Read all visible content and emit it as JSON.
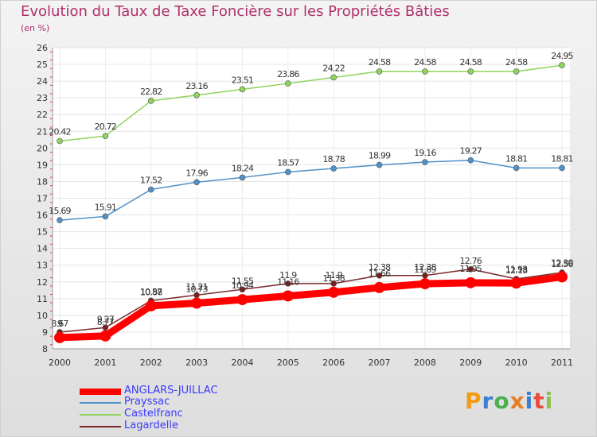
{
  "page": {
    "title": "Evolution du Taux de Taxe Foncière sur les Propriétés Bâties",
    "unit": "(en %)"
  },
  "chart_data": {
    "type": "line",
    "title": "Evolution du Taux de Taxe Foncière sur les Propriétés Bâties",
    "ylabel": "(en %)",
    "xlabel": "",
    "x": [
      "2000",
      "2001",
      "2002",
      "2003",
      "2004",
      "2005",
      "2006",
      "2007",
      "2008",
      "2009",
      "2010",
      "2011"
    ],
    "ylim": [
      8,
      26
    ],
    "yticks": [
      "8",
      "9",
      "10",
      "11",
      "12",
      "13",
      "14",
      "15",
      "16",
      "17",
      "18",
      "19",
      "20",
      "21",
      "22",
      "23",
      "24",
      "25",
      "26"
    ],
    "grid": true,
    "legend": "bottom-left",
    "series": [
      {
        "name": "ANGLARS-JUILLAC",
        "color": "#ff0000",
        "values": [
          8.67,
          8.77,
          10.57,
          10.73,
          10.94,
          11.16,
          11.38,
          11.66,
          11.89,
          11.95,
          11.93,
          12.3
        ],
        "labels": [
          "8.67",
          "8.77",
          "10.57",
          "10.73",
          "10.94",
          "11.16",
          "11.38",
          "11.66",
          "11.89",
          "11.95",
          "11.93",
          "12.30"
        ]
      },
      {
        "name": "Prayssac",
        "color": "#4f91c8",
        "values": [
          15.69,
          15.91,
          17.52,
          17.96,
          18.24,
          18.57,
          18.78,
          18.99,
          19.16,
          19.27,
          18.81,
          18.81
        ],
        "labels": [
          "15.69",
          "15.91",
          "17.52",
          "17.96",
          "18.24",
          "18.57",
          "18.78",
          "18.99",
          "19.16",
          "19.27",
          "18.81",
          "18.81"
        ]
      },
      {
        "name": "Castelfranc",
        "color": "#8fd35b",
        "values": [
          20.42,
          20.72,
          22.82,
          23.16,
          23.51,
          23.86,
          24.22,
          24.58,
          24.58,
          24.58,
          24.58,
          24.95
        ],
        "labels": [
          "20.42",
          "20.72",
          "22.82",
          "23.16",
          "23.51",
          "23.86",
          "24.22",
          "24.58",
          "24.58",
          "24.58",
          "24.58",
          "24.95"
        ]
      },
      {
        "name": "Lagardelle",
        "color": "#7a2a2a",
        "values": [
          9.0,
          9.27,
          10.88,
          11.21,
          11.55,
          11.9,
          11.9,
          12.38,
          12.38,
          12.76,
          12.18,
          12.56
        ],
        "labels": [
          "9",
          "9.27",
          "10.88",
          "11.21",
          "11.55",
          "11.9",
          "11.9",
          "12.38",
          "12.38",
          "12.76",
          "12.18",
          "12.56"
        ]
      }
    ]
  },
  "logo": {
    "text": [
      "P",
      "r",
      "o",
      "x",
      "i",
      "t",
      "i"
    ],
    "colors": [
      "#f39c12",
      "#3a7fd5",
      "#4caf50",
      "#e67e22",
      "#3a7fd5",
      "#e74c3c",
      "#8bc34a"
    ]
  }
}
